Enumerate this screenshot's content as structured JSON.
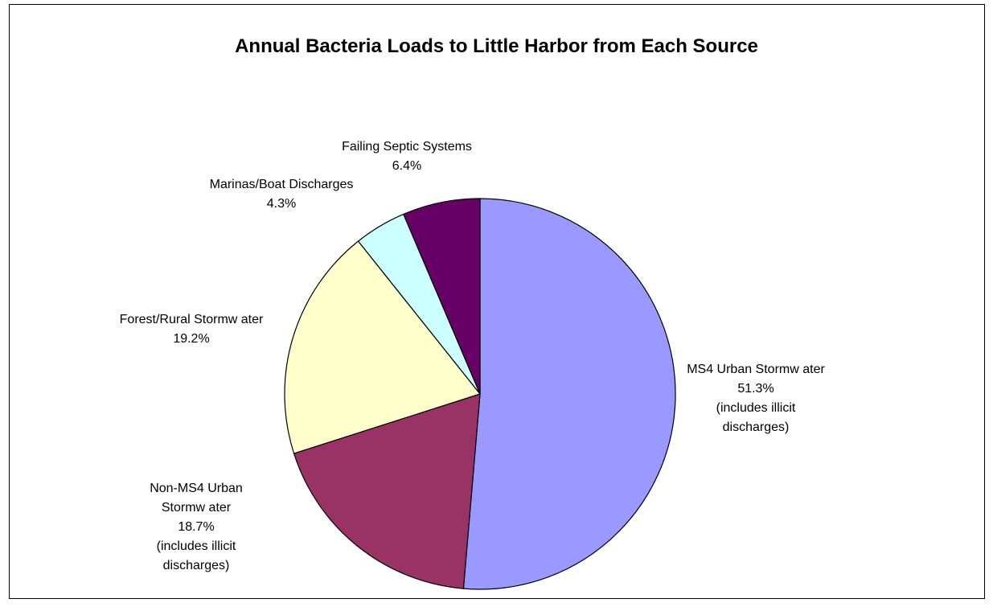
{
  "chart_data": {
    "type": "pie",
    "title": "Annual Bacteria Loads to Little Harbor from Each Source",
    "slices": [
      {
        "name": "MS4 Urban Stormw ater",
        "value": 51.3,
        "value_label": "51.3%",
        "note_line1": "(includes illicit",
        "note_line2": "discharges)",
        "color": "#9999ff"
      },
      {
        "name_line1": "Non-MS4 Urban",
        "name_line2": "Stormw ater",
        "value": 18.7,
        "value_label": "18.7%",
        "note_line1": "(includes illicit",
        "note_line2": "discharges)",
        "color": "#993366"
      },
      {
        "name": "Forest/Rural Stormw ater",
        "value": 19.2,
        "value_label": "19.2%",
        "color": "#ffffcc"
      },
      {
        "name": "Marinas/Boat Discharges",
        "value": 4.3,
        "value_label": "4.3%",
        "color": "#ccffff"
      },
      {
        "name": "Failing Septic Systems",
        "value": 6.4,
        "value_label": "6.4%",
        "color": "#660066"
      }
    ],
    "start": "12 o'clock",
    "direction": "clockwise",
    "legend": "none"
  }
}
